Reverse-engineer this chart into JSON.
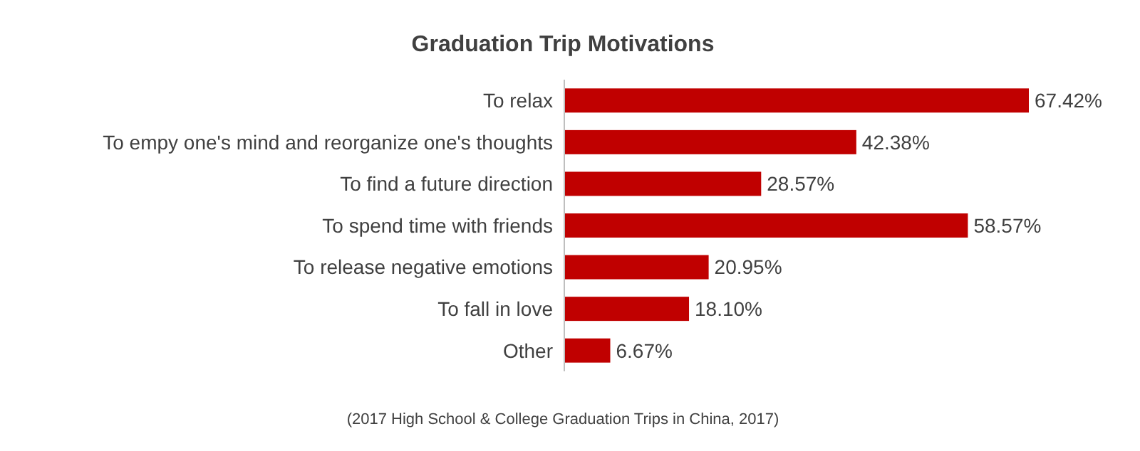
{
  "chart_data": {
    "type": "bar",
    "orientation": "horizontal",
    "title": "Graduation Trip Motivations",
    "categories": [
      "To relax",
      "To empy one's mind and reorganize one's thoughts",
      "To find a future direction",
      "To spend time with friends",
      "To release negative emotions",
      "To fall in love",
      "Other"
    ],
    "values": [
      67.42,
      42.38,
      28.57,
      58.57,
      20.95,
      18.1,
      6.67
    ],
    "value_labels": [
      "67.42%",
      "42.38%",
      "28.57%",
      "58.57%",
      "20.95%",
      "18.10%",
      "6.67%"
    ],
    "color": "#c00000",
    "annotations": [
      "(2017 High School & College Graduation Trips in China, 2017)"
    ]
  }
}
